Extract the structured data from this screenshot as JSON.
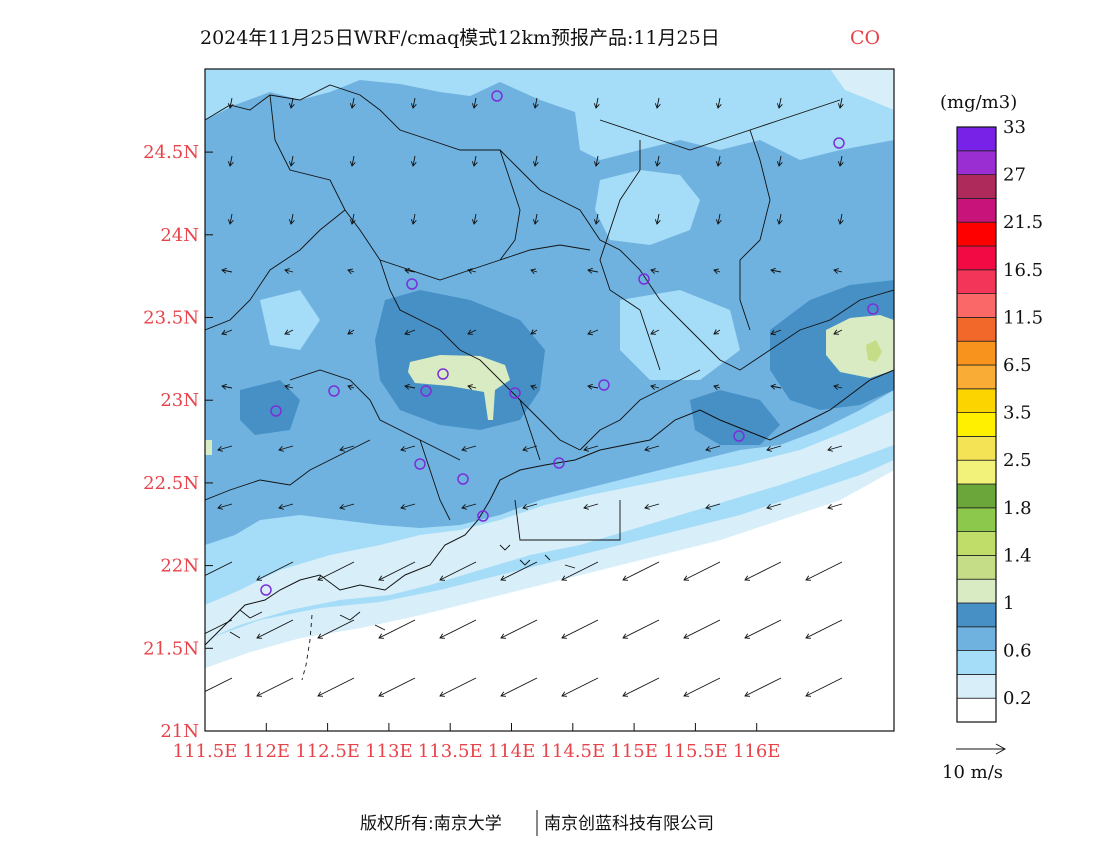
{
  "title": {
    "main": "2024年11月25日WRF/cmaq模式12km预报产品:11月25日",
    "species": "CO",
    "species_color": "#e8434a"
  },
  "map": {
    "lon_ticks": [
      "111.5E",
      "112E",
      "112.5E",
      "113E",
      "113.5E",
      "114E",
      "114.5E",
      "115E",
      "115.5E",
      "116E"
    ],
    "lat_ticks": [
      "21N",
      "21.5N",
      "22N",
      "22.5N",
      "23N",
      "23.5N",
      "24N",
      "24.5N"
    ],
    "tick_color": "#e8434a",
    "station_marker_color": "#7b2fd8"
  },
  "colorbar": {
    "unit": "(mg/m3)",
    "labels": [
      "0.2",
      "0.6",
      "1",
      "1.4",
      "1.8",
      "2.5",
      "3.5",
      "6.5",
      "11.5",
      "16.5",
      "21.5",
      "27",
      "33"
    ],
    "colors": [
      "#ffffff",
      "#d8effa",
      "#a5dcf7",
      "#6fb2e0",
      "#4690c6",
      "#d9ebc2",
      "#c4dd86",
      "#c0dd6a",
      "#8cc84b",
      "#6aa63a",
      "#f2f27a",
      "#f4e455",
      "#fff000",
      "#fcd400",
      "#f9ad36",
      "#f8931d",
      "#f2682a",
      "#fb6868",
      "#f4355a",
      "#f20a45",
      "#ff0000",
      "#c8147a",
      "#ad2a5a",
      "#9b2ed2",
      "#7722e6"
    ]
  },
  "wind": {
    "reference_label": "10 m/s"
  },
  "footer": {
    "copyright": "版权所有:南京大学",
    "company": "南京创蓝科技有限公司"
  }
}
